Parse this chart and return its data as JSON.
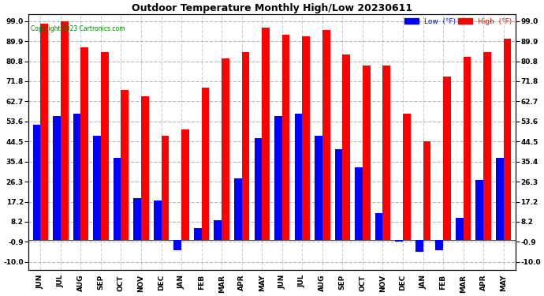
{
  "months": [
    "JUN",
    "JUL",
    "AUG",
    "SEP",
    "OCT",
    "NOV",
    "DEC",
    "JAN",
    "FEB",
    "MAR",
    "APR",
    "MAY",
    "JUN",
    "JUL",
    "AUG",
    "SEP",
    "OCT",
    "NOV",
    "DEC",
    "JAN",
    "FEB",
    "MAR",
    "APR",
    "MAY"
  ],
  "high": [
    98.0,
    99.0,
    87.0,
    85.0,
    68.0,
    65.0,
    47.0,
    50.0,
    69.0,
    82.0,
    85.0,
    96.0,
    93.0,
    92.0,
    95.0,
    84.0,
    79.0,
    79.0,
    57.0,
    44.5,
    74.0,
    83.0,
    85.0,
    91.0
  ],
  "low": [
    52.0,
    56.0,
    57.0,
    47.0,
    37.0,
    19.0,
    18.0,
    -4.5,
    5.5,
    9.0,
    28.0,
    46.0,
    56.0,
    57.0,
    47.0,
    41.0,
    33.0,
    12.0,
    -0.9,
    -5.5,
    -4.5,
    10.0,
    27.0,
    37.0
  ],
  "high_color": "#ff0000",
  "low_color": "#0000ff",
  "title": "Outdoor Temperature Monthly High/Low 20230611",
  "yticks": [
    -10.0,
    -0.9,
    8.2,
    17.2,
    26.3,
    35.4,
    44.5,
    53.6,
    62.7,
    71.8,
    80.8,
    89.9,
    99.0
  ],
  "ylim": [
    -13.5,
    102.0
  ],
  "background_color": "#ffffff",
  "grid_color": "#888888",
  "copyright_text": "Copyright 2023 Cartronics.com",
  "legend_low": "Low  (°F)",
  "legend_high": "High  (°F)",
  "bar_width": 0.38,
  "figwidth": 6.9,
  "figheight": 3.75,
  "dpi": 100
}
